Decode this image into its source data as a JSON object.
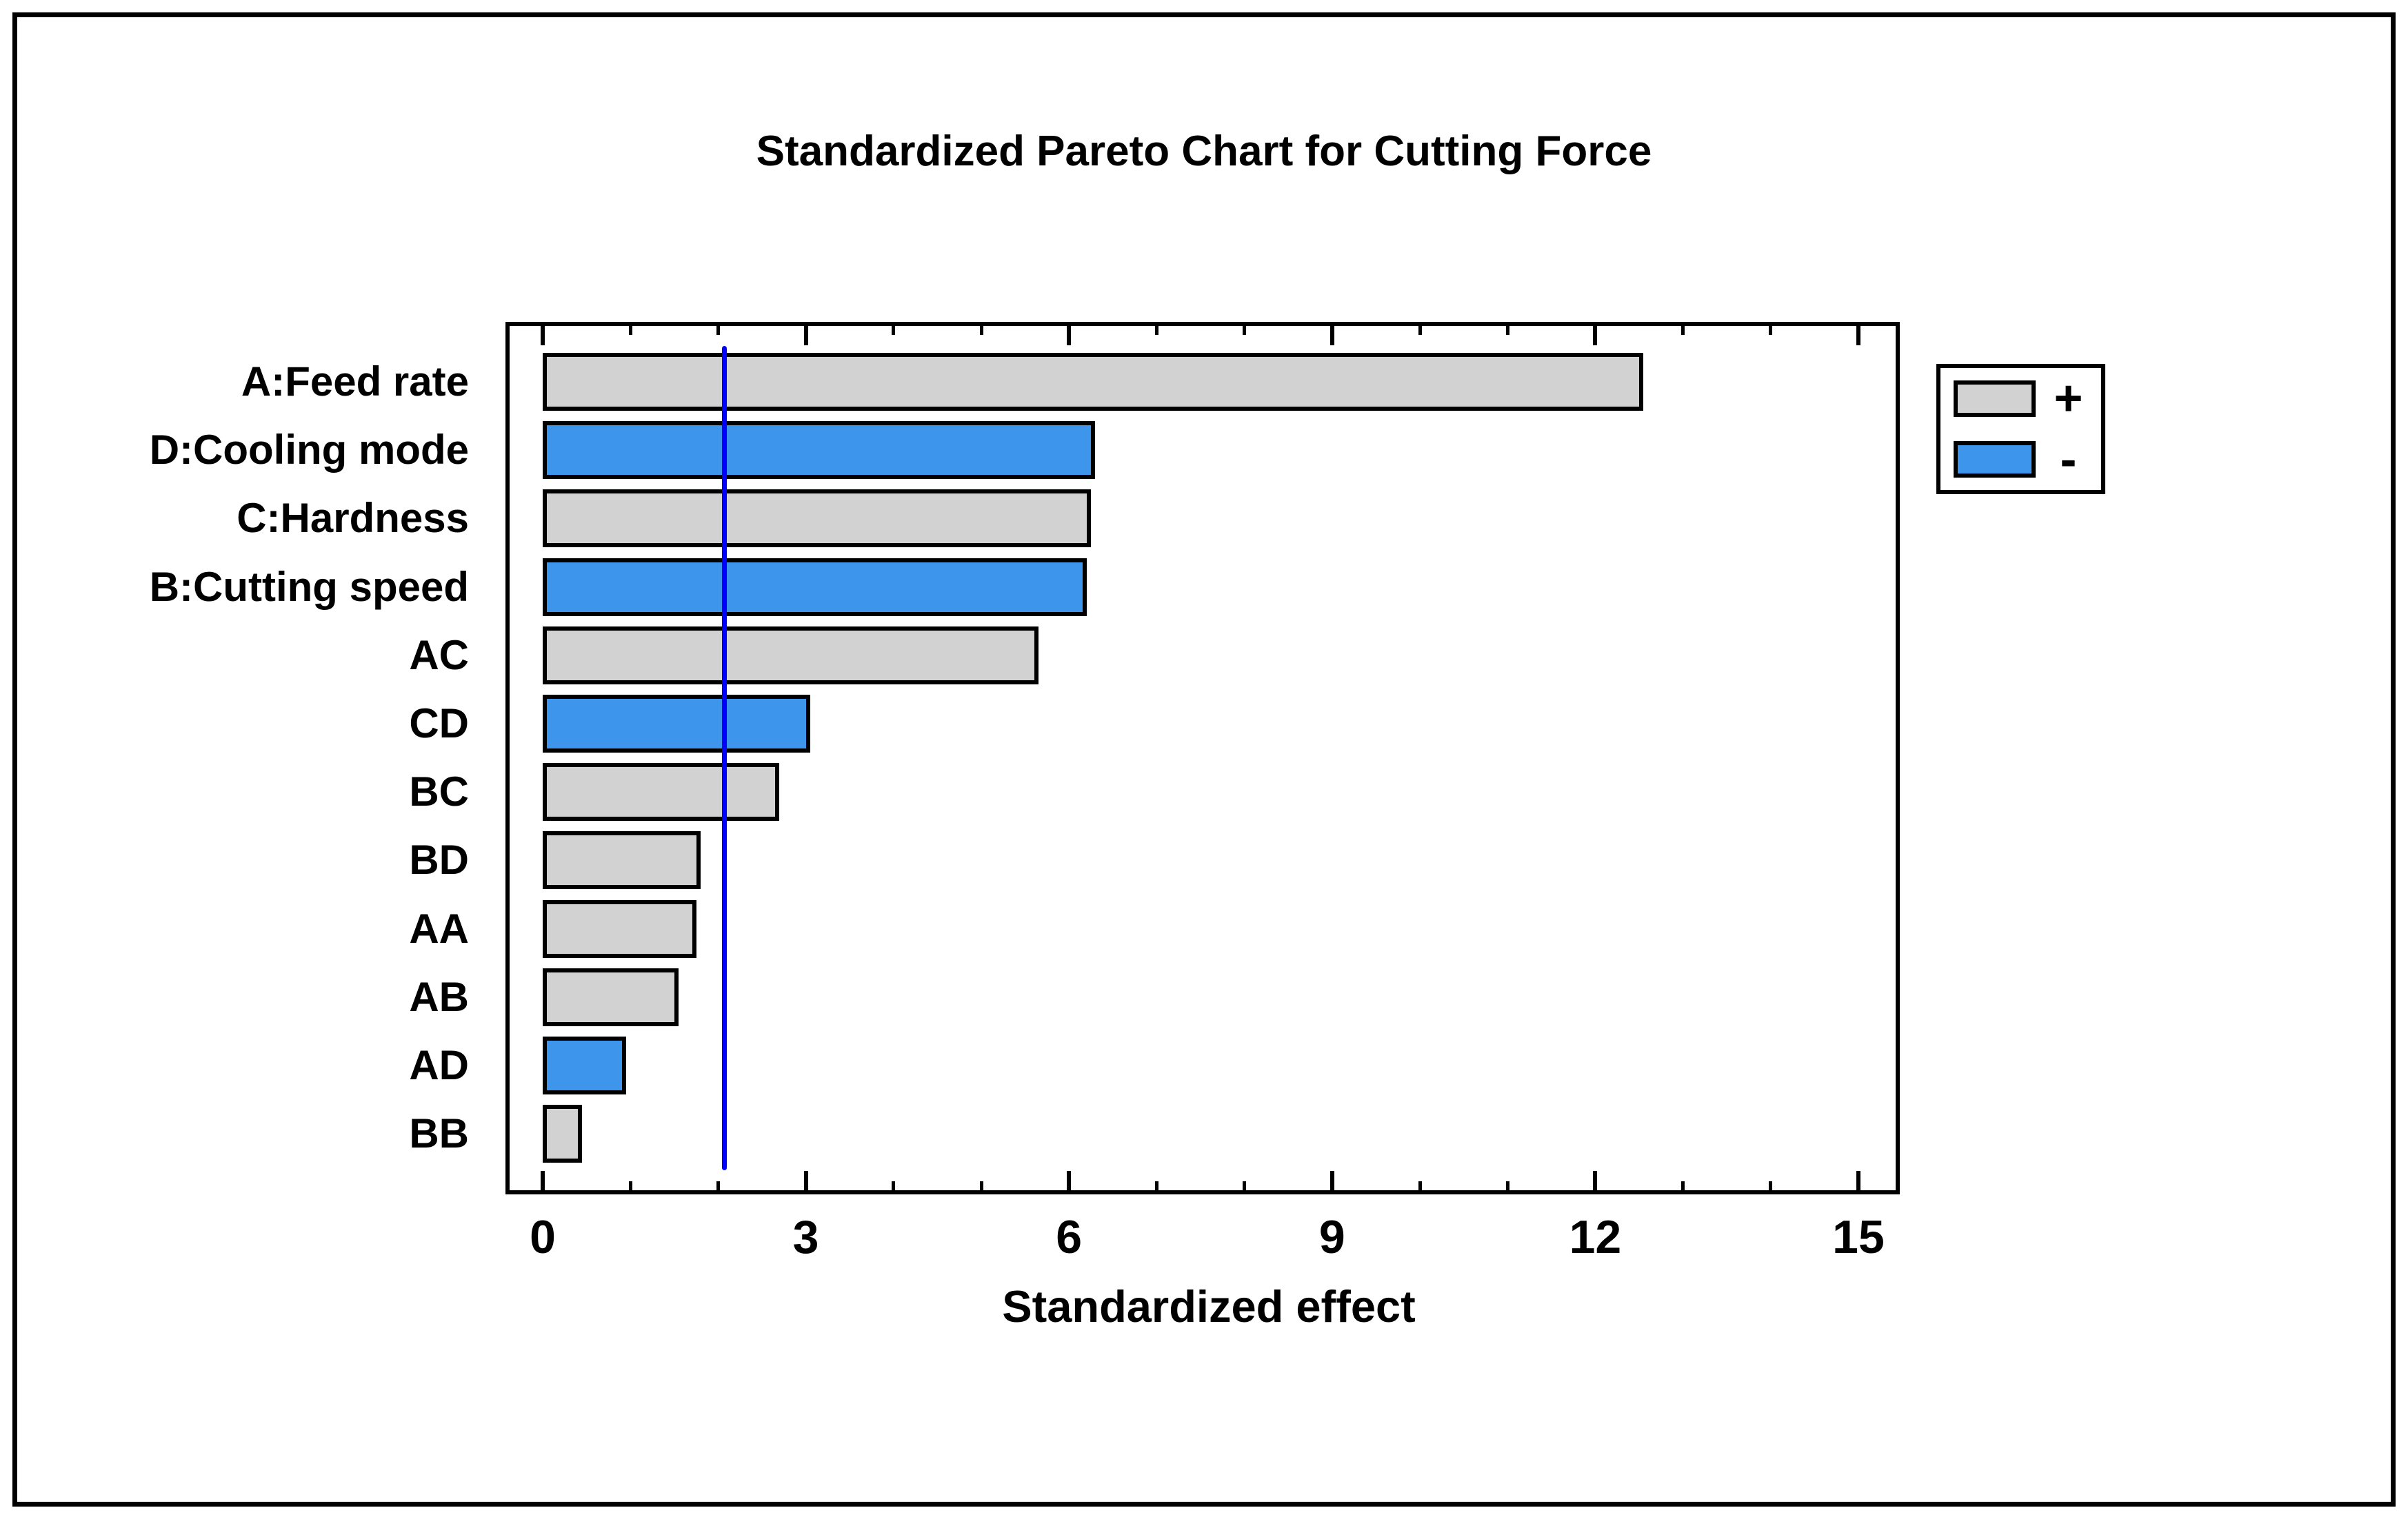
{
  "chart_data": {
    "type": "bar",
    "orientation": "horizontal",
    "title": "Standardized Pareto Chart for Cutting Force",
    "xlabel": "Standardized effect",
    "categories": [
      "A:Feed rate",
      "D:Cooling mode",
      "C:Hardness",
      "B:Cutting speed",
      "AC",
      "CD",
      "BC",
      "BD",
      "AA",
      "AB",
      "AD",
      "BB"
    ],
    "values": [
      12.55,
      6.3,
      6.25,
      6.2,
      5.65,
      3.05,
      2.7,
      1.8,
      1.75,
      1.55,
      0.95,
      0.45
    ],
    "signs": [
      "+",
      "-",
      "+",
      "-",
      "+",
      "-",
      "+",
      "+",
      "+",
      "+",
      "-",
      "+"
    ],
    "threshold_line": 2.07,
    "xlim": [
      0,
      15
    ],
    "x_major_ticks": [
      0,
      3,
      6,
      9,
      12,
      15
    ],
    "x_minor_tick_step": 1,
    "grid": false,
    "legend": {
      "position": "top-right",
      "entries": [
        {
          "label": "+",
          "color": "#d2d2d2"
        },
        {
          "label": "-",
          "color": "#3e95ec"
        }
      ]
    },
    "colors": {
      "positive_bar": "#d2d2d2",
      "negative_bar": "#3e95ec",
      "bar_border": "#000000",
      "threshold_line": "#0000ff",
      "axis": "#000000",
      "background": "#ffffff"
    }
  }
}
